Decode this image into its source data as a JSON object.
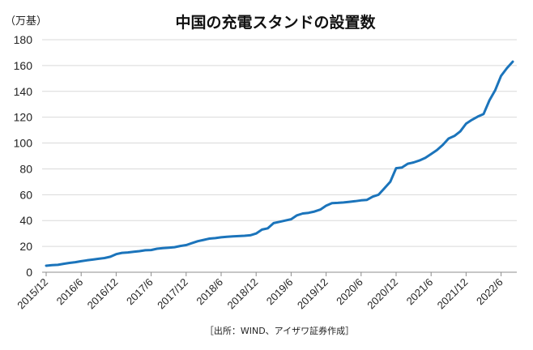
{
  "chart_data": {
    "type": "line",
    "title": "中国の充電スタンドの設置数",
    "ylabel": "（万基）",
    "source": "［出所：WIND、アイザワ証券作成］",
    "ylim": [
      0,
      180
    ],
    "ytick_step": 20,
    "grid": true,
    "legend": "none",
    "color": "#1b74bb",
    "xtick_labels": [
      "2015/12",
      "2016/6",
      "2016/12",
      "2017/6",
      "2017/12",
      "2018/6",
      "2018/12",
      "2019/6",
      "2019/12",
      "2020/6",
      "2020/12",
      "2021/6",
      "2021/12",
      "2022/6"
    ],
    "x": [
      "2015/12",
      "2016/1",
      "2016/2",
      "2016/3",
      "2016/4",
      "2016/5",
      "2016/6",
      "2016/7",
      "2016/8",
      "2016/9",
      "2016/10",
      "2016/11",
      "2016/12",
      "2017/1",
      "2017/2",
      "2017/3",
      "2017/4",
      "2017/5",
      "2017/6",
      "2017/7",
      "2017/8",
      "2017/9",
      "2017/10",
      "2017/11",
      "2017/12",
      "2018/1",
      "2018/2",
      "2018/3",
      "2018/4",
      "2018/5",
      "2018/6",
      "2018/7",
      "2018/8",
      "2018/9",
      "2018/10",
      "2018/11",
      "2018/12",
      "2019/1",
      "2019/2",
      "2019/3",
      "2019/4",
      "2019/5",
      "2019/6",
      "2019/7",
      "2019/8",
      "2019/9",
      "2019/10",
      "2019/11",
      "2019/12",
      "2020/1",
      "2020/2",
      "2020/3",
      "2020/4",
      "2020/5",
      "2020/6",
      "2020/7",
      "2020/8",
      "2020/9",
      "2020/10",
      "2020/11",
      "2020/12",
      "2021/1",
      "2021/2",
      "2021/3",
      "2021/4",
      "2021/5",
      "2021/6",
      "2021/7",
      "2021/8",
      "2021/9",
      "2021/10",
      "2021/11",
      "2021/12",
      "2022/1",
      "2022/2",
      "2022/3",
      "2022/4",
      "2022/5",
      "2022/6",
      "2022/7",
      "2022/8"
    ],
    "series": [
      {
        "values": [
          5,
          5.5,
          5.7,
          6.5,
          7.2,
          7.8,
          8.5,
          9.2,
          9.8,
          10.4,
          11,
          12,
          14,
          15,
          15.3,
          15.8,
          16.3,
          17,
          17.2,
          18.2,
          18.7,
          19,
          19.4,
          20.3,
          21,
          22.5,
          24,
          25,
          26,
          26.4,
          27,
          27.5,
          27.8,
          28,
          28.2,
          28.6,
          30,
          33,
          34,
          38,
          39,
          40,
          41,
          44,
          45.5,
          46,
          47,
          48.5,
          51.5,
          53.5,
          53.7,
          54,
          54.5,
          55,
          55.6,
          56,
          58.5,
          60,
          65,
          70,
          80.5,
          81,
          84,
          85,
          86.5,
          88.5,
          91.5,
          94.5,
          98.5,
          103.5,
          105.5,
          109,
          115,
          118,
          120.5,
          122.5,
          133,
          141,
          152,
          158,
          163
        ]
      }
    ]
  }
}
